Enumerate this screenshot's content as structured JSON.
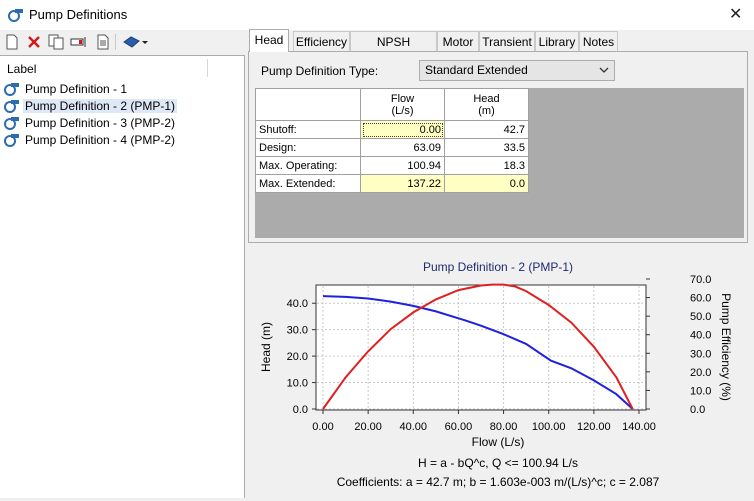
{
  "window": {
    "title": "Pump Definitions",
    "close_glyph": "✕"
  },
  "toolbar": {
    "icons": [
      "new-icon",
      "delete-icon",
      "duplicate-icon",
      "rename-icon",
      "report-icon",
      "library-icon"
    ]
  },
  "tree": {
    "header": "Label",
    "items": [
      {
        "label": "Pump Definition - 1"
      },
      {
        "label": "Pump Definition - 2 (PMP-1)"
      },
      {
        "label": "Pump Definition - 3 (PMP-2)"
      },
      {
        "label": "Pump Definition - 4 (PMP-2)"
      }
    ],
    "selected_index": 1
  },
  "tabs": [
    {
      "label": "Head"
    },
    {
      "label": "Efficiency"
    },
    {
      "label": "NPSH Required"
    },
    {
      "label": "Motor"
    },
    {
      "label": "Transient"
    },
    {
      "label": "Library"
    },
    {
      "label": "Notes"
    }
  ],
  "active_tab": "Head",
  "head_tab": {
    "definition_type_label": "Pump Definition Type:",
    "definition_type_value": "Standard Extended",
    "columns": [
      {
        "line1": "Flow",
        "line2": "(L/s)"
      },
      {
        "line1": "Head",
        "line2": "(m)"
      }
    ],
    "rows": [
      {
        "label": "Shutoff:",
        "flow": "0.00",
        "head": "42.7",
        "flow_hl": true,
        "head_hl": false
      },
      {
        "label": "Design:",
        "flow": "63.09",
        "head": "33.5",
        "flow_hl": false,
        "head_hl": false
      },
      {
        "label": "Max. Operating:",
        "flow": "100.94",
        "head": "18.3",
        "flow_hl": false,
        "head_hl": false
      },
      {
        "label": "Max. Extended:",
        "flow": "137.22",
        "head": "0.0",
        "flow_hl": true,
        "head_hl": true
      }
    ]
  },
  "chart_data": {
    "type": "line",
    "title": "Pump Definition - 2 (PMP-1)",
    "xlabel": "Flow (L/s)",
    "ylabel": "Head (m)",
    "y2label": "Pump Efficiency (%)",
    "xlim": [
      0,
      140
    ],
    "ylim": [
      0,
      45
    ],
    "y2lim": [
      0,
      70
    ],
    "x_ticks": [
      "0.00",
      "20.00",
      "40.00",
      "60.00",
      "80.00",
      "100.00",
      "120.00",
      "140.00"
    ],
    "y_ticks": [
      "0.0",
      "10.0",
      "20.0",
      "30.0",
      "40.0"
    ],
    "y2_ticks": [
      "0.0",
      "10.0",
      "20.0",
      "30.0",
      "40.0",
      "50.0",
      "60.0",
      "70.0"
    ],
    "grid": true,
    "series": [
      {
        "axis": "left",
        "color": "#2020e0",
        "x": [
          0,
          10,
          20,
          30,
          40,
          50,
          60,
          63.09,
          70,
          80,
          90,
          100.94,
          110,
          120,
          130,
          137.22
        ],
        "y": [
          42.7,
          42.4,
          41.8,
          40.6,
          39.0,
          36.9,
          34.3,
          33.5,
          31.5,
          28.3,
          24.6,
          18.3,
          15.4,
          10.8,
          5.6,
          0.0
        ]
      },
      {
        "axis": "right",
        "color": "#e02020",
        "x": [
          0,
          10,
          20,
          30,
          40,
          50,
          60,
          70,
          75,
          80,
          85,
          90,
          100,
          110,
          120,
          130,
          137.22
        ],
        "y": [
          0,
          17,
          31,
          43,
          52,
          59,
          64,
          66.5,
          67,
          67,
          66,
          63.5,
          56,
          46.5,
          33.5,
          17,
          0
        ]
      }
    ],
    "equation": "H = a - bQ^c, Q <= 100.94 L/s",
    "coefficients": "Coefficients:  a = 42.7 m; b = 1.603e-003 m/(L/s)^c; c = 2.087"
  }
}
